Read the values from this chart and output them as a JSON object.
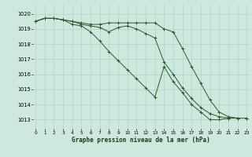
{
  "title": "Graphe pression niveau de la mer (hPa)",
  "bg_color": "#cde8dc",
  "grid_color": "#b0d4c4",
  "line_color": "#2d5a2d",
  "x_ticks": [
    0,
    1,
    2,
    3,
    4,
    5,
    6,
    7,
    8,
    9,
    10,
    11,
    12,
    13,
    14,
    15,
    16,
    17,
    18,
    19,
    20,
    21,
    22,
    23
  ],
  "y_ticks": [
    1013,
    1014,
    1015,
    1016,
    1017,
    1018,
    1019,
    1020
  ],
  "ylim": [
    1012.4,
    1020.6
  ],
  "xlim": [
    -0.3,
    23.3
  ],
  "series1": [
    1019.5,
    1019.7,
    1019.7,
    1019.6,
    1019.5,
    1019.4,
    1019.3,
    1019.3,
    1019.4,
    1019.4,
    1019.4,
    1019.4,
    1019.4,
    1019.4,
    1019.0,
    1018.8,
    1017.7,
    1016.5,
    1015.4,
    1014.3,
    1013.5,
    1013.2,
    1013.1,
    1013.1
  ],
  "series2": [
    1019.5,
    1019.7,
    1019.7,
    1019.6,
    1019.5,
    1019.3,
    1019.2,
    1019.1,
    1018.8,
    1019.1,
    1019.2,
    1019.0,
    1018.7,
    1018.4,
    1016.8,
    1016.0,
    1015.1,
    1014.4,
    1013.8,
    1013.4,
    1013.2,
    1013.1,
    1013.1,
    1013.1
  ],
  "series3": [
    1019.5,
    1019.7,
    1019.7,
    1019.6,
    1019.3,
    1019.2,
    1018.8,
    1018.2,
    1017.5,
    1016.9,
    1016.3,
    1015.7,
    1015.1,
    1014.5,
    1016.5,
    1015.5,
    1014.8,
    1014.0,
    1013.5,
    1013.0,
    1013.0,
    1013.1,
    1013.1,
    1013.1
  ]
}
